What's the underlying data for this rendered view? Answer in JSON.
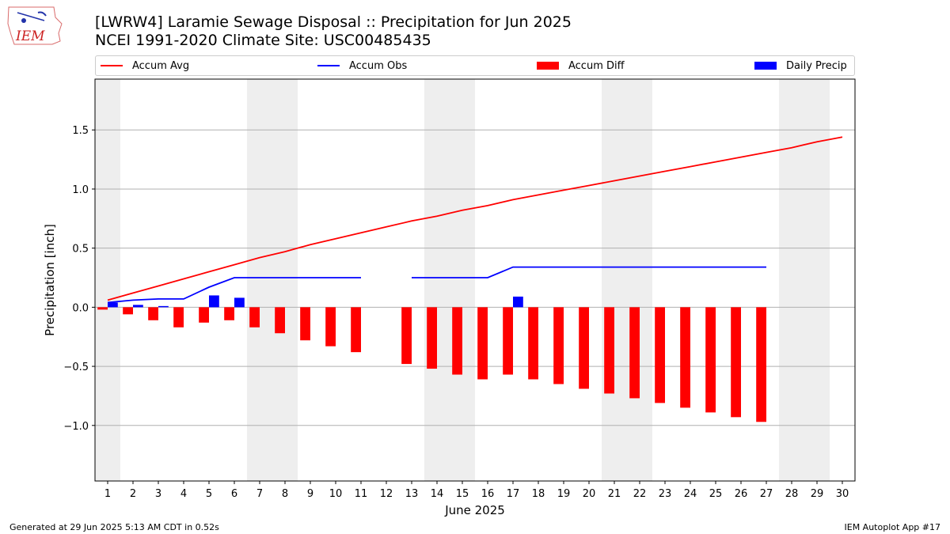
{
  "header": {
    "title_line1": "[LWRW4] Laramie Sewage Disposal :: Precipitation for Jun 2025",
    "title_line2": "NCEI 1991-2020 Climate Site: USC00485435"
  },
  "logo": {
    "text": "IEM"
  },
  "footer": {
    "generated": "Generated at 29 Jun 2025 5:13 AM CDT in 0.52s",
    "app": "IEM Autoplot App #17"
  },
  "legend": {
    "accum_avg": "Accum Avg",
    "accum_obs": "Accum Obs",
    "accum_diff": "Accum Diff",
    "daily_precip": "Daily Precip"
  },
  "colors": {
    "avg": "#ff0000",
    "obs": "#0000ff",
    "diff": "#ff0000",
    "daily": "#0000ff",
    "weekend": "#eeeeee",
    "grid": "#b0b0b0"
  },
  "chart_data": {
    "type": "bar+line",
    "xlabel": "June 2025",
    "ylabel": "Precipitation [inch]",
    "xlim": [
      0.5,
      30.5
    ],
    "ylim": [
      -1.47,
      1.93
    ],
    "yticks": [
      -1.0,
      -0.5,
      0.0,
      0.5,
      1.0,
      1.5
    ],
    "ytick_labels": [
      "−1.0",
      "−0.5",
      "0.0",
      "0.5",
      "1.0",
      "1.5"
    ],
    "days": [
      1,
      2,
      3,
      4,
      5,
      6,
      7,
      8,
      9,
      10,
      11,
      12,
      13,
      14,
      15,
      16,
      17,
      18,
      19,
      20,
      21,
      22,
      23,
      24,
      25,
      26,
      27,
      28,
      29,
      30
    ],
    "weekend_days": [
      1,
      7,
      8,
      14,
      15,
      21,
      22,
      28,
      29
    ],
    "accum_avg": [
      0.06,
      0.12,
      0.18,
      0.24,
      0.3,
      0.36,
      0.42,
      0.47,
      0.53,
      0.58,
      0.63,
      0.68,
      0.73,
      0.77,
      0.82,
      0.86,
      0.91,
      0.95,
      0.99,
      1.03,
      1.07,
      1.11,
      1.15,
      1.19,
      1.23,
      1.27,
      1.31,
      1.35,
      1.4,
      1.44
    ],
    "accum_obs": [
      0.04,
      0.06,
      0.07,
      0.07,
      0.17,
      0.25,
      0.25,
      0.25,
      0.25,
      0.25,
      0.25,
      null,
      0.25,
      0.25,
      0.25,
      0.25,
      0.34,
      0.34,
      0.34,
      0.34,
      0.34,
      0.34,
      0.34,
      0.34,
      0.34,
      0.34,
      0.34,
      null,
      null,
      null
    ],
    "accum_diff": [
      -0.02,
      -0.06,
      -0.11,
      -0.17,
      -0.13,
      -0.11,
      -0.17,
      -0.22,
      -0.28,
      -0.33,
      -0.38,
      null,
      -0.48,
      -0.52,
      -0.57,
      -0.61,
      -0.57,
      -0.61,
      -0.65,
      -0.69,
      -0.73,
      -0.77,
      -0.81,
      -0.85,
      -0.89,
      -0.93,
      -0.97,
      null,
      null,
      null
    ],
    "daily_precip": [
      0.04,
      0.02,
      0.01,
      0.0,
      0.1,
      0.08,
      0.0,
      0.0,
      0.0,
      0.0,
      0.0,
      null,
      0.0,
      0.0,
      0.0,
      0.0,
      0.09,
      0.0,
      0.0,
      0.0,
      0.0,
      0.0,
      0.0,
      0.0,
      0.0,
      0.0,
      0.0,
      null,
      null,
      null
    ]
  }
}
